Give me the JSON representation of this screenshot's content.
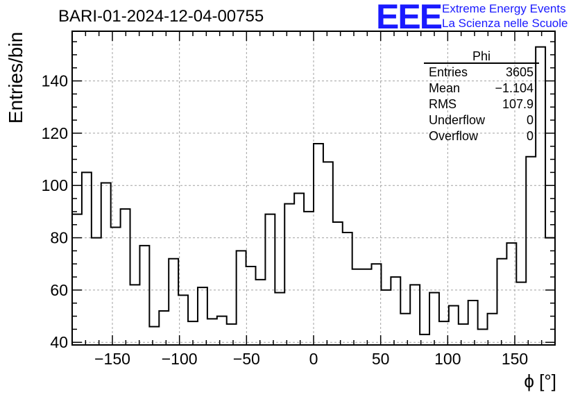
{
  "header": {
    "run_title": "BARI-01-2024-12-04-00755",
    "logo_text": "EEE",
    "logo_line1": "Extreme Energy Events",
    "logo_line2": "La Scienza nelle Scuole",
    "logo_color": "#1a1aff"
  },
  "stats": {
    "title": "Phi",
    "rows": [
      {
        "label": "Entries",
        "value": "3605"
      },
      {
        "label": "Mean",
        "value": "−1.104"
      },
      {
        "label": "RMS",
        "value": "107.9"
      },
      {
        "label": "Underflow",
        "value": "0"
      },
      {
        "label": "Overflow",
        "value": "0"
      }
    ]
  },
  "chart_data": {
    "type": "histogram",
    "title": "BARI-01-2024-12-04-00755",
    "xlabel": "ϕ [°]",
    "ylabel": "Entries/bin",
    "xlim": [
      -180,
      180
    ],
    "ylim": [
      39,
      159
    ],
    "grid": true,
    "bin_width": 7.2,
    "x_ticks": [
      -150,
      -100,
      -50,
      0,
      50,
      100,
      150
    ],
    "x_tick_labels": [
      "−150",
      "−100",
      "−50",
      "0",
      "50",
      "100",
      "150"
    ],
    "y_ticks": [
      40,
      60,
      80,
      100,
      120,
      140
    ],
    "y_tick_labels": [
      "40",
      "60",
      "80",
      "100",
      "120",
      "140"
    ],
    "values": [
      89,
      105,
      80,
      101,
      84,
      91,
      62,
      77,
      46,
      52,
      72,
      58,
      48,
      61,
      49,
      50,
      47,
      75,
      69,
      64,
      89,
      59,
      93,
      97,
      90,
      116,
      109,
      86,
      82,
      68,
      68,
      70,
      60,
      65,
      51,
      62,
      43,
      59,
      48,
      54,
      47,
      56,
      45,
      51,
      72,
      78,
      63,
      111,
      153,
      80
    ]
  }
}
